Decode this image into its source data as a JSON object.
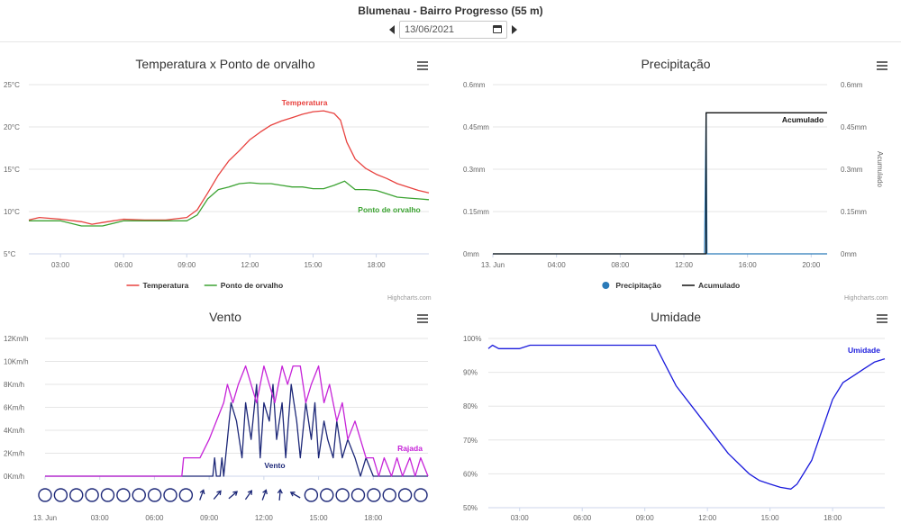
{
  "header": {
    "station_title": "Blumenau - Bairro Progresso (55 m)",
    "date_value": "13/06/2021"
  },
  "credits": "Highcharts.com",
  "chart_data": [
    {
      "id": "temp",
      "type": "line",
      "title": "Temperatura x Ponto de orvalho",
      "x_ticks": [
        "03:00",
        "06:00",
        "09:00",
        "12:00",
        "15:00",
        "18:00"
      ],
      "x_tick_hours": [
        3,
        6,
        9,
        12,
        15,
        18
      ],
      "xlim_hours": [
        1.5,
        20.5
      ],
      "y_ticks": [
        "5°C",
        "10°C",
        "15°C",
        "20°C",
        "25°C"
      ],
      "y_tick_values": [
        5,
        10,
        15,
        20,
        25
      ],
      "ylim": [
        5,
        25
      ],
      "legend_position": "bottom",
      "series": [
        {
          "name": "Temperatura",
          "color": "#e8423f",
          "x": [
            1.5,
            2,
            3,
            4,
            4.5,
            5,
            6,
            7,
            8,
            9,
            9.5,
            10,
            10.5,
            11,
            11.5,
            12,
            12.5,
            13,
            13.5,
            14,
            14.5,
            15,
            15.5,
            16,
            16.3,
            16.6,
            17,
            17.5,
            18,
            18.5,
            19,
            19.5,
            20,
            20.5
          ],
          "y": [
            9,
            9.3,
            9.1,
            8.8,
            8.5,
            8.7,
            9.1,
            9,
            9,
            9.3,
            10.2,
            12.2,
            14.3,
            16,
            17.2,
            18.5,
            19.4,
            20.2,
            20.7,
            21.1,
            21.5,
            21.8,
            21.9,
            21.6,
            20.8,
            18.2,
            16.2,
            15.1,
            14.4,
            13.9,
            13.3,
            12.9,
            12.5,
            12.2
          ]
        },
        {
          "name": "Ponto de orvalho",
          "color": "#3ca332",
          "x": [
            1.5,
            3,
            4,
            5,
            6,
            7,
            8,
            9,
            9.5,
            10,
            10.5,
            11,
            11.5,
            12,
            12.5,
            13,
            13.5,
            14,
            14.5,
            15,
            15.5,
            16,
            16.5,
            17,
            17.5,
            18,
            18.5,
            19,
            19.5,
            20,
            20.5
          ],
          "y": [
            8.9,
            8.9,
            8.3,
            8.3,
            8.9,
            8.9,
            8.9,
            8.9,
            9.6,
            11.5,
            12.6,
            12.9,
            13.3,
            13.4,
            13.3,
            13.3,
            13.1,
            12.9,
            12.9,
            12.7,
            12.7,
            13.1,
            13.6,
            12.6,
            12.6,
            12.5,
            12.1,
            11.7,
            11.6,
            11.5,
            11.4
          ]
        }
      ],
      "annotations": [
        {
          "text": "Temperatura",
          "series": 0
        },
        {
          "text": "Ponto de orvalho",
          "series": 1
        }
      ]
    },
    {
      "id": "precip",
      "type": "line",
      "title": "Precipitação",
      "x_ticks": [
        "13. Jun",
        "04:00",
        "08:00",
        "12:00",
        "16:00",
        "20:00"
      ],
      "x_tick_hours": [
        0,
        4,
        8,
        12,
        16,
        20
      ],
      "xlim_hours": [
        0,
        21
      ],
      "y_ticks": [
        "0mm",
        "0.15mm",
        "0.3mm",
        "0.45mm",
        "0.6mm"
      ],
      "y_tick_values": [
        0,
        0.15,
        0.3,
        0.45,
        0.6
      ],
      "ylim": [
        0,
        0.6
      ],
      "y2_label": "Acumulado",
      "legend_position": "bottom",
      "series": [
        {
          "name": "Precipitação",
          "color": "#2b7bb9",
          "marker": "circle",
          "x": [
            0,
            13.3,
            13.4,
            13.45,
            13.5,
            21
          ],
          "y": [
            0,
            0,
            0.5,
            0,
            0,
            0
          ]
        },
        {
          "name": "Acumulado",
          "color": "#111111",
          "x": [
            0,
            13.4,
            13.4,
            21
          ],
          "y": [
            0,
            0,
            0.5,
            0.5
          ]
        }
      ],
      "annotations": [
        {
          "text": "Acumulado",
          "series": 1
        }
      ]
    },
    {
      "id": "wind",
      "type": "line",
      "title": "Vento",
      "x_ticks": [
        "13. Jun",
        "03:00",
        "06:00",
        "09:00",
        "12:00",
        "15:00",
        "18:00"
      ],
      "x_tick_hours": [
        0,
        3,
        6,
        9,
        12,
        15,
        18
      ],
      "xlim_hours": [
        0,
        21
      ],
      "y_ticks": [
        "0Km/h",
        "2Km/h",
        "4Km/h",
        "6Km/h",
        "8Km/h",
        "10Km/h",
        "12Km/h"
      ],
      "y_tick_values": [
        0,
        2,
        4,
        6,
        8,
        10,
        12
      ],
      "ylim": [
        0,
        12
      ],
      "series": [
        {
          "name": "Vento",
          "color": "#1d2878",
          "x": [
            0,
            9.2,
            9.3,
            9.4,
            9.6,
            9.7,
            9.8,
            10,
            10.2,
            10.5,
            10.8,
            11,
            11.3,
            11.6,
            11.8,
            12,
            12.3,
            12.5,
            12.7,
            13,
            13.2,
            13.5,
            13.8,
            14,
            14.3,
            14.6,
            14.8,
            15,
            15.3,
            15.5,
            15.8,
            16,
            16.3,
            16.6,
            17,
            17.3,
            17.6,
            18,
            21
          ],
          "y": [
            0,
            0,
            1.6,
            0,
            0,
            1.6,
            0,
            3.2,
            6.4,
            4.8,
            1.6,
            6.4,
            3.2,
            8,
            1.6,
            6.4,
            4.8,
            8,
            3.2,
            6.4,
            1.6,
            8,
            4.8,
            1.6,
            6.4,
            3.2,
            6.4,
            1.6,
            4.8,
            3.2,
            1.6,
            4.8,
            1.6,
            3.2,
            1.6,
            0,
            1.6,
            0,
            0
          ]
        },
        {
          "name": "Rajada",
          "color": "#c623d8",
          "x": [
            0,
            7.5,
            7.6,
            8.5,
            9,
            9.4,
            9.8,
            10,
            10.3,
            10.6,
            11,
            11.3,
            11.6,
            12,
            12.3,
            12.6,
            13,
            13.3,
            13.6,
            14,
            14.3,
            14.6,
            15,
            15.3,
            15.6,
            16,
            16.3,
            16.6,
            17,
            17.3,
            17.6,
            18,
            18.3,
            18.6,
            19,
            19.3,
            19.6,
            20,
            20.3,
            20.6,
            21
          ],
          "y": [
            0,
            0,
            1.6,
            1.6,
            3.2,
            4.8,
            6.4,
            8,
            6.4,
            8,
            9.6,
            8,
            6.4,
            9.6,
            8,
            6.4,
            9.6,
            8,
            9.6,
            9.6,
            6.4,
            8,
            9.6,
            6.4,
            8,
            4.8,
            6.4,
            3.2,
            4.8,
            3.2,
            1.6,
            1.6,
            0,
            1.6,
            0,
            1.6,
            0,
            1.6,
            0,
            1.6,
            0
          ]
        }
      ],
      "annotations": [
        {
          "text": "Vento",
          "series": 0
        },
        {
          "text": "Rajada",
          "series": 1
        }
      ],
      "direction_markers": [
        "calm",
        "calm",
        "calm",
        "calm",
        "calm",
        "calm",
        "calm",
        "calm",
        "calm",
        "calm",
        "arrow",
        "arrow",
        "arrow",
        "arrow",
        "arrow",
        "arrow",
        "arrow",
        "calm",
        "calm",
        "calm",
        "calm",
        "calm",
        "calm",
        "calm",
        "calm"
      ]
    },
    {
      "id": "hum",
      "type": "line",
      "title": "Umidade",
      "x_ticks": [
        "03:00",
        "06:00",
        "09:00",
        "12:00",
        "15:00",
        "18:00"
      ],
      "x_tick_hours": [
        3,
        6,
        9,
        12,
        15,
        18
      ],
      "xlim_hours": [
        1.5,
        20.5
      ],
      "y_ticks": [
        "50%",
        "60%",
        "70%",
        "80%",
        "90%",
        "100%"
      ],
      "y_tick_values": [
        50,
        60,
        70,
        80,
        90,
        100
      ],
      "ylim": [
        50,
        100
      ],
      "series": [
        {
          "name": "Umidade",
          "color": "#1b1bdc",
          "x": [
            1.5,
            1.7,
            2,
            3,
            3.5,
            4,
            5,
            6,
            7,
            8,
            9,
            9.5,
            10,
            10.5,
            11,
            11.5,
            12,
            12.5,
            13,
            13.5,
            14,
            14.5,
            15,
            15.5,
            16,
            16.3,
            16.6,
            17,
            17.5,
            18,
            18.5,
            19,
            19.5,
            20,
            20.5
          ],
          "y": [
            97,
            98,
            97,
            97,
            98,
            98,
            98,
            98,
            98,
            98,
            98,
            98,
            92,
            86,
            82,
            78,
            74,
            70,
            66,
            63,
            60,
            58,
            57,
            56,
            55.5,
            57,
            60,
            64,
            73,
            82,
            87,
            89,
            91,
            93,
            94
          ]
        }
      ],
      "annotations": [
        {
          "text": "Umidade",
          "series": 0
        }
      ]
    }
  ]
}
